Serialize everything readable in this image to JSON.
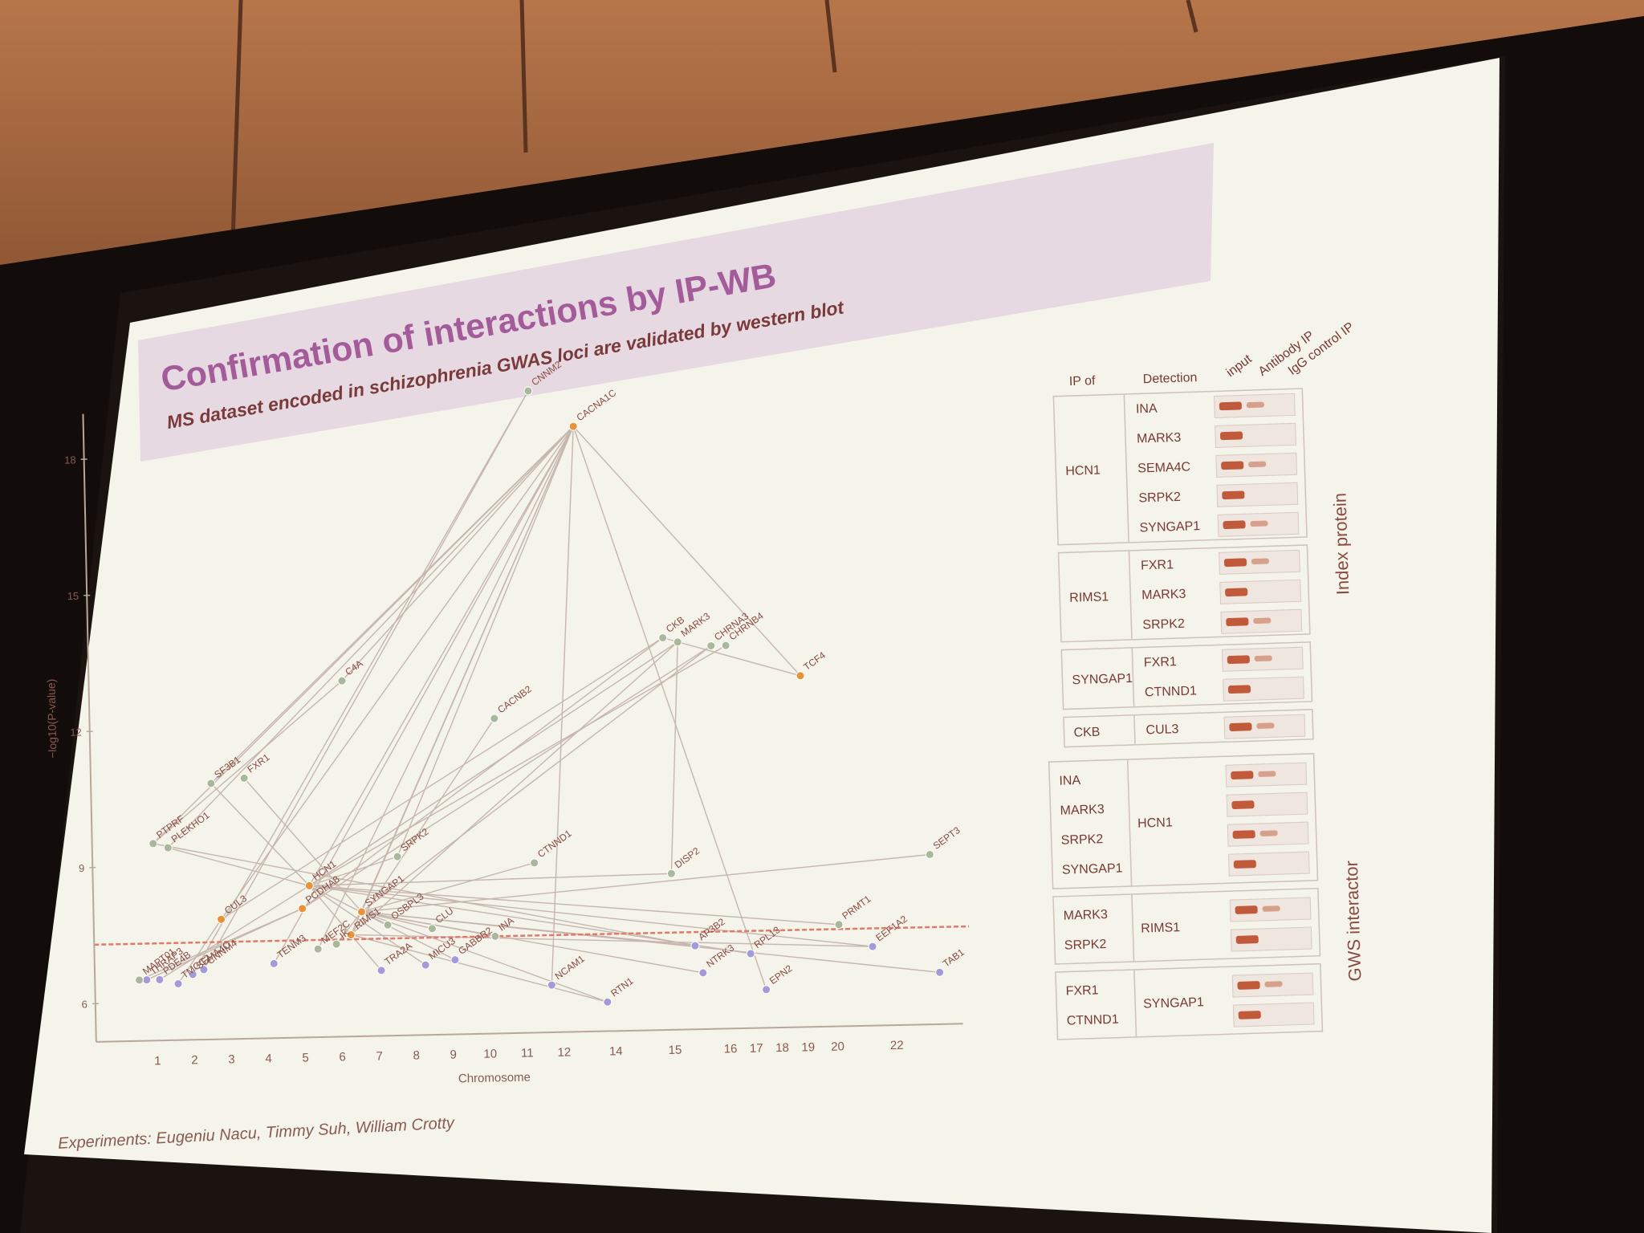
{
  "slide": {
    "title": "Confirmation of interactions by IP-WB",
    "subtitle": "MS dataset encoded in schizophrenia GWAS loci are validated by western blot",
    "credits": "Experiments: Eugeniu Nacu, Timmy Suh, William Crotty"
  },
  "colors": {
    "slide_bg": "#f4f4ea",
    "title_band": "#e6d9e2",
    "title": "#a45b9a",
    "orange_node": "#e8923a",
    "green_node": "#a9b89a",
    "purple_node": "#a49ad8",
    "threshold_line": "#e07a6a"
  },
  "chart_data": {
    "type": "scatter",
    "xlabel": "Chromosome",
    "ylabel": "−log10(P-value)",
    "x_ticks": [
      "1",
      "2",
      "3",
      "4",
      "5",
      "6",
      "7",
      "8",
      "9",
      "10",
      "11",
      "12",
      "14",
      "15",
      "16",
      "17",
      "18",
      "19",
      "20",
      "22"
    ],
    "y_ticks": [
      "6",
      "9",
      "12",
      "15",
      "18"
    ],
    "threshold": 7.3,
    "nodes": [
      {
        "gene": "CACNA1C",
        "chr": 12.6,
        "y": 18.5,
        "group": "orange"
      },
      {
        "gene": "CNNM2",
        "chr": 11.4,
        "y": 19.3,
        "group": "green"
      },
      {
        "gene": "CKB",
        "chr": 14.9,
        "y": 13.8,
        "group": "green"
      },
      {
        "gene": "MARK3",
        "chr": 15.3,
        "y": 13.7,
        "group": "green"
      },
      {
        "gene": "CHRNA3",
        "chr": 16.2,
        "y": 13.6,
        "group": "green"
      },
      {
        "gene": "CHRNB4",
        "chr": 16.6,
        "y": 13.6,
        "group": "green"
      },
      {
        "gene": "TCF4",
        "chr": 18.6,
        "y": 12.9,
        "group": "orange"
      },
      {
        "gene": "C4A",
        "chr": 6.2,
        "y": 13.0,
        "group": "green"
      },
      {
        "gene": "CACNB2",
        "chr": 10.3,
        "y": 12.1,
        "group": "green"
      },
      {
        "gene": "SF3B1",
        "chr": 2.6,
        "y": 10.8,
        "group": "green"
      },
      {
        "gene": "FXR1",
        "chr": 3.5,
        "y": 10.9,
        "group": "green"
      },
      {
        "gene": "PTPRF",
        "chr": 1.0,
        "y": 9.5,
        "group": "green"
      },
      {
        "gene": "PLEKHO1",
        "chr": 1.4,
        "y": 9.4,
        "group": "green"
      },
      {
        "gene": "SRPK2",
        "chr": 7.6,
        "y": 9.1,
        "group": "green"
      },
      {
        "gene": "CTNND1",
        "chr": 11.3,
        "y": 8.9,
        "group": "green"
      },
      {
        "gene": "DISP2",
        "chr": 15.0,
        "y": 8.6,
        "group": "green"
      },
      {
        "gene": "SEPT3",
        "chr": 22.0,
        "y": 8.9,
        "group": "green"
      },
      {
        "gene": "HCN1",
        "chr": 5.2,
        "y": 8.5,
        "group": "orange"
      },
      {
        "gene": "SYNGAP1",
        "chr": 6.6,
        "y": 7.9,
        "group": "orange"
      },
      {
        "gene": "PCDHA8",
        "chr": 5.0,
        "y": 8.0,
        "group": "orange"
      },
      {
        "gene": "CUL3",
        "chr": 2.8,
        "y": 7.8,
        "group": "orange"
      },
      {
        "gene": "RIMS1",
        "chr": 6.3,
        "y": 7.4,
        "group": "orange"
      },
      {
        "gene": "OSBPL3",
        "chr": 7.3,
        "y": 7.6,
        "group": "green"
      },
      {
        "gene": "CLU",
        "chr": 8.5,
        "y": 7.5,
        "group": "green"
      },
      {
        "gene": "INA",
        "chr": 10.2,
        "y": 7.3,
        "group": "green"
      },
      {
        "gene": "AP3B2",
        "chr": 15.6,
        "y": 7.0,
        "group": "purple"
      },
      {
        "gene": "PRMT1",
        "chr": 19.5,
        "y": 7.4,
        "group": "green"
      },
      {
        "gene": "EEF1A2",
        "chr": 20.4,
        "y": 6.9,
        "group": "purple"
      },
      {
        "gene": "RPL13",
        "chr": 17.1,
        "y": 6.8,
        "group": "purple"
      },
      {
        "gene": "TAB1",
        "chr": 22.2,
        "y": 6.3,
        "group": "purple"
      },
      {
        "gene": "EPN2",
        "chr": 17.5,
        "y": 6.0,
        "group": "purple"
      },
      {
        "gene": "NTRK3",
        "chr": 15.8,
        "y": 6.4,
        "group": "purple"
      },
      {
        "gene": "RTN1",
        "chr": 13.2,
        "y": 5.8,
        "group": "purple"
      },
      {
        "gene": "NCAM1",
        "chr": 11.7,
        "y": 6.2,
        "group": "purple"
      },
      {
        "gene": "GABBR2",
        "chr": 9.1,
        "y": 6.8,
        "group": "purple"
      },
      {
        "gene": "MICU3",
        "chr": 8.3,
        "y": 6.7,
        "group": "purple"
      },
      {
        "gene": "TRA2A",
        "chr": 7.1,
        "y": 6.6,
        "group": "purple"
      },
      {
        "gene": "IK",
        "chr": 5.9,
        "y": 7.2,
        "group": "green"
      },
      {
        "gene": "MEF2C",
        "chr": 5.4,
        "y": 7.1,
        "group": "green"
      },
      {
        "gene": "TENM3",
        "chr": 4.2,
        "y": 6.8,
        "group": "purple"
      },
      {
        "gene": "CNNM4",
        "chr": 2.3,
        "y": 6.7,
        "group": "purple"
      },
      {
        "gene": "SEMA4C",
        "chr": 2.0,
        "y": 6.6,
        "group": "purple"
      },
      {
        "gene": "TMCC2",
        "chr": 1.6,
        "y": 6.4,
        "group": "purple"
      },
      {
        "gene": "PDE4B",
        "chr": 1.1,
        "y": 6.5,
        "group": "purple"
      },
      {
        "gene": "THRAP3",
        "chr": 0.75,
        "y": 6.5,
        "group": "purple"
      },
      {
        "gene": "MAPT01",
        "chr": 0.55,
        "y": 6.5,
        "group": "green"
      }
    ],
    "edges": [
      [
        "CACNA1C",
        "PTPRF"
      ],
      [
        "CACNA1C",
        "PLEKHO1"
      ],
      [
        "CACNA1C",
        "SF3B1"
      ],
      [
        "CACNA1C",
        "C4A"
      ],
      [
        "CACNA1C",
        "SRPK2"
      ],
      [
        "CACNA1C",
        "HCN1"
      ],
      [
        "CACNA1C",
        "CUL3"
      ],
      [
        "CACNA1C",
        "TCF4"
      ],
      [
        "CACNA1C",
        "EPN2"
      ],
      [
        "CACNA1C",
        "NCAM1"
      ],
      [
        "CACNA1C",
        "RIMS1"
      ],
      [
        "CACNA1C",
        "SYNGAP1"
      ],
      [
        "CACNA1C",
        "MEF2C"
      ],
      [
        "CACNA1C",
        "TENM3"
      ],
      [
        "CNNM2",
        "SEMA4C"
      ],
      [
        "CNNM2",
        "CNNM4"
      ],
      [
        "CKB",
        "CUL3"
      ],
      [
        "CKB",
        "PCDHA8"
      ],
      [
        "CKB",
        "TCF4"
      ],
      [
        "MARK3",
        "HCN1"
      ],
      [
        "MARK3",
        "RIMS1"
      ],
      [
        "MARK3",
        "DISP2"
      ],
      [
        "CHRNA3",
        "SYNGAP1"
      ],
      [
        "CHRNB4",
        "HCN1"
      ],
      [
        "CHRNA3",
        "PCDHA8"
      ],
      [
        "C4A",
        "PTPRF"
      ],
      [
        "CACNB2",
        "RIMS1"
      ],
      [
        "SF3B1",
        "HCN1"
      ],
      [
        "FXR1",
        "SYNGAP1"
      ],
      [
        "PTPRF",
        "AP3B2"
      ],
      [
        "PLEKHO1",
        "HCN1"
      ],
      [
        "SRPK2",
        "HCN1"
      ],
      [
        "CTNND1",
        "SYNGAP1"
      ],
      [
        "SEPT3",
        "SYNGAP1"
      ],
      [
        "DISP2",
        "HCN1"
      ],
      [
        "HCN1",
        "PRMT1"
      ],
      [
        "HCN1",
        "EEF1A2"
      ],
      [
        "HCN1",
        "RPL13"
      ],
      [
        "SYNGAP1",
        "TAB1"
      ],
      [
        "SYNGAP1",
        "NTRK3"
      ],
      [
        "SYNGAP1",
        "AP3B2"
      ],
      [
        "RIMS1",
        "RTN1"
      ],
      [
        "RIMS1",
        "EEF1A2"
      ],
      [
        "HCN1",
        "TRA2A"
      ],
      [
        "HCN1",
        "MICU3"
      ],
      [
        "HCN1",
        "GABBR2"
      ],
      [
        "PCDHA8",
        "MAPT01"
      ],
      [
        "PCDHA8",
        "THRAP3"
      ],
      [
        "HCN1",
        "PDE4B"
      ],
      [
        "CUL3",
        "TMCC2"
      ],
      [
        "SYNGAP1",
        "IK"
      ],
      [
        "SYNGAP1",
        "OSBPL3"
      ],
      [
        "SYNGAP1",
        "CLU"
      ],
      [
        "SYNGAP1",
        "INA"
      ],
      [
        "SYNGAP1",
        "RTN1"
      ]
    ]
  },
  "ipwb_table": {
    "headers": {
      "ip_of": "IP of",
      "detection": "Detection",
      "lanes": [
        "input",
        "Antibody IP",
        "IgG control IP"
      ]
    },
    "side_labels": {
      "index": "Index protein",
      "gws": "GWS interactor"
    },
    "index_blocks": [
      {
        "ip": "HCN1",
        "rows": [
          "INA",
          "MARK3",
          "SEMA4C",
          "SRPK2",
          "SYNGAP1"
        ]
      },
      {
        "ip": "RIMS1",
        "rows": [
          "FXR1",
          "MARK3",
          "SRPK2"
        ]
      },
      {
        "ip": "SYNGAP1",
        "rows": [
          "FXR1",
          "CTNND1"
        ]
      },
      {
        "ip": "CKB",
        "rows": [
          "CUL3"
        ]
      }
    ],
    "gws_blocks": [
      {
        "detection": "HCN1",
        "rows": [
          "INA",
          "MARK3",
          "SRPK2",
          "SYNGAP1"
        ]
      },
      {
        "detection": "RIMS1",
        "rows": [
          "MARK3",
          "SRPK2"
        ]
      },
      {
        "detection": "SYNGAP1",
        "rows": [
          "FXR1",
          "CTNND1"
        ]
      }
    ]
  }
}
